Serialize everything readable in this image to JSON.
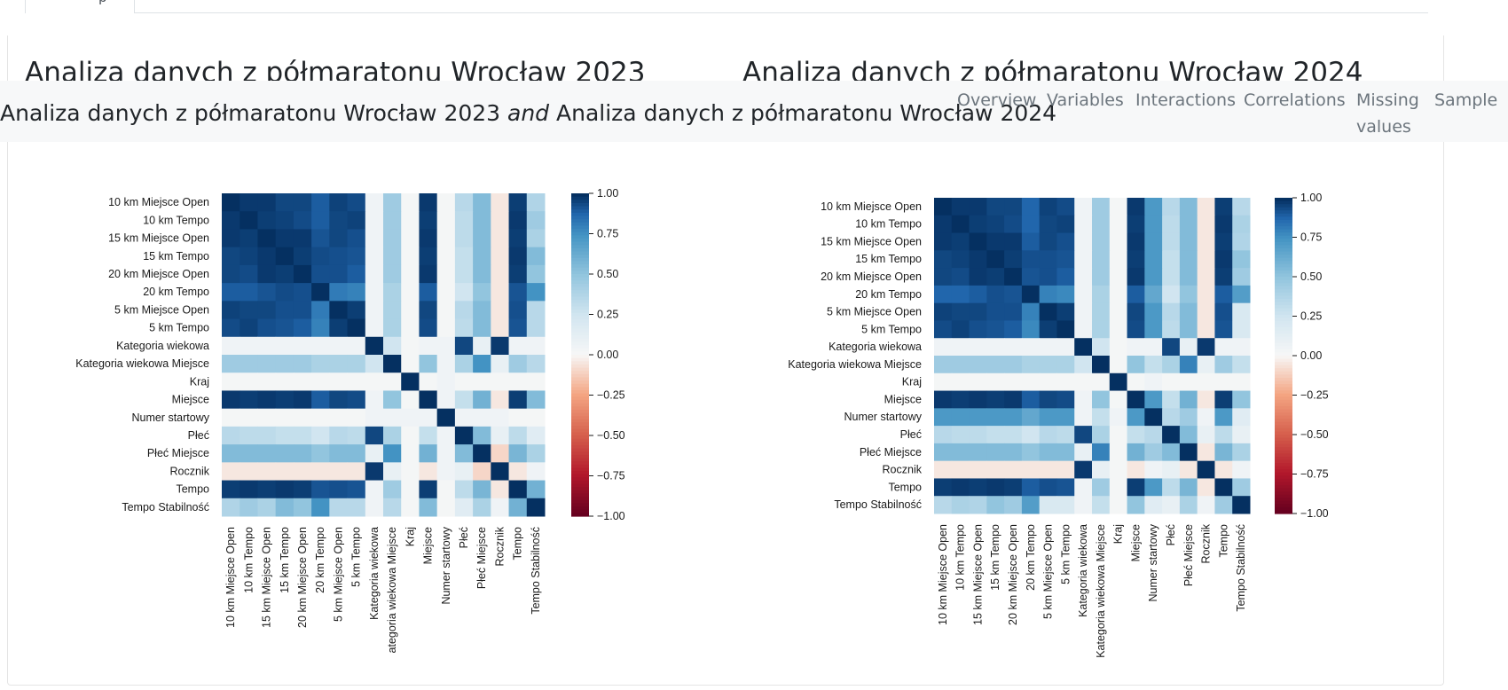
{
  "tab": {
    "label": "p"
  },
  "headings": {
    "left": "Analiza danych z półmaratonu Wrocław 2023",
    "right": "Analiza danych z półmaratonu Wrocław 2024"
  },
  "navbar": {
    "brand_left": "Analiza danych z półmaratonu Wrocław 2023",
    "brand_and": "and",
    "brand_right": "Analiza danych z półmaratonu Wrocław 2024",
    "links": [
      "Overview",
      "Variables",
      "Interactions",
      "Correlations",
      "Missing values",
      "Sample"
    ]
  },
  "chart_data": [
    {
      "type": "heatmap",
      "title": "",
      "variables": [
        "10 km Miejsce Open",
        "10 km Tempo",
        "15 km Miejsce Open",
        "15 km Tempo",
        "20 km Miejsce Open",
        "20 km Tempo",
        "5 km Miejsce Open",
        "5 km Tempo",
        "Kategoria wiekowa",
        "Kategoria wiekowa Miejsce",
        "Kraj",
        "Miejsce",
        "Numer startowy",
        "Płeć",
        "Płeć Miejsce",
        "Rocznik",
        "Tempo",
        "Tempo Stabilność"
      ],
      "x_tick_labels": [
        "10 km Miejsce Open",
        "10 km Tempo",
        "15 km Miejsce Open",
        "15 km Tempo",
        "20 km Miejsce Open",
        "20 km Tempo",
        "5 km Miejsce Open",
        "5 km Tempo",
        "Kategoria wiekowa",
        "ategoria wiekowa Miejsce",
        "Kraj",
        "Miejsce",
        "Numer startowy",
        "Płeć",
        "Płeć Miejsce",
        "Rocznik",
        "Tempo",
        "Tempo Stabilność"
      ],
      "values": [
        [
          1,
          0.98,
          0.98,
          0.95,
          0.95,
          0.9,
          0.96,
          0.94,
          0.05,
          0.45,
          0.02,
          0.98,
          0.02,
          0.35,
          0.55,
          -0.05,
          0.97,
          0.38
        ],
        [
          0.98,
          1,
          0.97,
          0.96,
          0.94,
          0.9,
          0.95,
          0.96,
          0.05,
          0.45,
          0.02,
          0.97,
          0.02,
          0.33,
          0.55,
          -0.05,
          0.98,
          0.45
        ],
        [
          0.98,
          0.97,
          1,
          0.98,
          0.98,
          0.92,
          0.95,
          0.93,
          0.05,
          0.45,
          0.02,
          0.98,
          0.02,
          0.33,
          0.55,
          -0.05,
          0.97,
          0.4
        ],
        [
          0.95,
          0.96,
          0.98,
          1,
          0.97,
          0.94,
          0.93,
          0.92,
          0.05,
          0.45,
          0.02,
          0.97,
          0.02,
          0.3,
          0.55,
          -0.05,
          0.98,
          0.55
        ],
        [
          0.95,
          0.94,
          0.98,
          0.97,
          1,
          0.93,
          0.93,
          0.9,
          0.05,
          0.45,
          0.02,
          0.98,
          0.02,
          0.3,
          0.55,
          -0.05,
          0.97,
          0.5
        ],
        [
          0.9,
          0.9,
          0.92,
          0.94,
          0.93,
          1,
          0.82,
          0.8,
          0.05,
          0.4,
          0.02,
          0.9,
          0.02,
          0.25,
          0.5,
          -0.05,
          0.92,
          0.75
        ],
        [
          0.96,
          0.95,
          0.95,
          0.93,
          0.93,
          0.82,
          1,
          0.97,
          0.05,
          0.4,
          0.02,
          0.95,
          0.02,
          0.35,
          0.55,
          -0.05,
          0.93,
          0.35
        ],
        [
          0.94,
          0.96,
          0.93,
          0.92,
          0.9,
          0.8,
          0.97,
          1,
          0.05,
          0.4,
          0.02,
          0.94,
          0.02,
          0.33,
          0.55,
          -0.05,
          0.92,
          0.35
        ],
        [
          0.05,
          0.05,
          0.05,
          0.05,
          0.05,
          0.05,
          0.05,
          0.05,
          1,
          0.25,
          0.02,
          0.05,
          0.05,
          0.95,
          0.1,
          0.98,
          0.05,
          0.05
        ],
        [
          0.45,
          0.45,
          0.45,
          0.45,
          0.45,
          0.4,
          0.4,
          0.4,
          0.25,
          1,
          0.02,
          0.5,
          0.05,
          0.4,
          0.75,
          0.1,
          0.45,
          0.35
        ],
        [
          0.02,
          0.02,
          0.02,
          0.02,
          0.02,
          0.02,
          0.02,
          0.02,
          0.02,
          0.02,
          1,
          0.02,
          0.05,
          0.02,
          0.02,
          0.02,
          0.02,
          0.02
        ],
        [
          0.98,
          0.97,
          0.98,
          0.97,
          0.98,
          0.9,
          0.95,
          0.94,
          0.05,
          0.5,
          0.02,
          1,
          0.05,
          0.3,
          0.6,
          -0.05,
          0.97,
          0.55
        ],
        [
          0.02,
          0.02,
          0.02,
          0.02,
          0.02,
          0.02,
          0.02,
          0.02,
          0.05,
          0.05,
          0.05,
          0.05,
          1,
          0.05,
          0.05,
          0.05,
          0.02,
          0.02
        ],
        [
          0.35,
          0.33,
          0.33,
          0.3,
          0.3,
          0.25,
          0.35,
          0.33,
          0.95,
          0.4,
          0.02,
          0.3,
          0.05,
          1,
          0.55,
          0.1,
          0.33,
          0.15
        ],
        [
          0.55,
          0.55,
          0.55,
          0.55,
          0.55,
          0.5,
          0.55,
          0.55,
          0.1,
          0.75,
          0.02,
          0.6,
          0.05,
          0.55,
          1,
          -0.1,
          0.58,
          0.4
        ],
        [
          -0.05,
          -0.05,
          -0.05,
          -0.05,
          -0.05,
          -0.05,
          -0.05,
          -0.05,
          0.98,
          0.1,
          0.02,
          -0.05,
          0.05,
          0.1,
          -0.1,
          1,
          -0.05,
          0.05
        ],
        [
          0.97,
          0.98,
          0.97,
          0.98,
          0.97,
          0.92,
          0.93,
          0.92,
          0.05,
          0.45,
          0.02,
          0.97,
          0.02,
          0.33,
          0.58,
          -0.05,
          1,
          0.6
        ],
        [
          0.38,
          0.45,
          0.4,
          0.55,
          0.5,
          0.75,
          0.35,
          0.35,
          0.05,
          0.35,
          0.02,
          0.55,
          0.02,
          0.15,
          0.4,
          0.05,
          0.6,
          1
        ]
      ],
      "colorbar": {
        "min": -1,
        "max": 1,
        "ticks": [
          "1.00",
          "0.75",
          "0.50",
          "0.25",
          "0.00",
          "−0.25",
          "−0.50",
          "−0.75",
          "−1.00"
        ]
      },
      "colormap": "RdBu"
    },
    {
      "type": "heatmap",
      "title": "",
      "variables": [
        "10 km Miejsce Open",
        "10 km Tempo",
        "15 km Miejsce Open",
        "15 km Tempo",
        "20 km Miejsce Open",
        "20 km Tempo",
        "5 km Miejsce Open",
        "5 km Tempo",
        "Kategoria wiekowa",
        "Kategoria wiekowa Miejsce",
        "Kraj",
        "Miejsce",
        "Numer startowy",
        "Płeć",
        "Płeć Miejsce",
        "Rocznik",
        "Tempo",
        "Tempo Stabilność"
      ],
      "x_tick_labels": [
        "10 km Miejsce Open",
        "10 km Tempo",
        "15 km Miejsce Open",
        "15 km Tempo",
        "20 km Miejsce Open",
        "20 km Tempo",
        "5 km Miejsce Open",
        "5 km Tempo",
        "Kategoria wiekowa",
        "Kategoria wiekowa Miejsce",
        "Kraj",
        "Miejsce",
        "Numer startowy",
        "Płeć",
        "Płeć Miejsce",
        "Rocznik",
        "Tempo",
        "Tempo Stabilność"
      ],
      "values": [
        [
          1,
          0.98,
          0.98,
          0.95,
          0.95,
          0.88,
          0.96,
          0.94,
          0.05,
          0.45,
          0.02,
          0.98,
          0.72,
          0.35,
          0.55,
          -0.05,
          0.97,
          0.35
        ],
        [
          0.98,
          1,
          0.97,
          0.96,
          0.94,
          0.88,
          0.95,
          0.96,
          0.05,
          0.45,
          0.02,
          0.97,
          0.72,
          0.33,
          0.55,
          -0.05,
          0.98,
          0.4
        ],
        [
          0.98,
          0.97,
          1,
          0.98,
          0.98,
          0.9,
          0.95,
          0.93,
          0.05,
          0.45,
          0.02,
          0.98,
          0.72,
          0.33,
          0.55,
          -0.05,
          0.97,
          0.38
        ],
        [
          0.95,
          0.96,
          0.98,
          1,
          0.97,
          0.93,
          0.93,
          0.92,
          0.05,
          0.45,
          0.02,
          0.97,
          0.72,
          0.3,
          0.55,
          -0.05,
          0.98,
          0.5
        ],
        [
          0.95,
          0.94,
          0.98,
          0.97,
          1,
          0.92,
          0.93,
          0.9,
          0.05,
          0.45,
          0.02,
          0.98,
          0.72,
          0.3,
          0.55,
          -0.05,
          0.97,
          0.45
        ],
        [
          0.88,
          0.88,
          0.9,
          0.93,
          0.92,
          1,
          0.8,
          0.78,
          0.05,
          0.4,
          0.02,
          0.9,
          0.65,
          0.25,
          0.5,
          -0.05,
          0.9,
          0.7
        ],
        [
          0.96,
          0.95,
          0.95,
          0.93,
          0.93,
          0.8,
          1,
          0.97,
          0.05,
          0.4,
          0.02,
          0.95,
          0.72,
          0.35,
          0.55,
          -0.05,
          0.93,
          0.2
        ],
        [
          0.94,
          0.96,
          0.93,
          0.92,
          0.9,
          0.78,
          0.97,
          1,
          0.05,
          0.4,
          0.02,
          0.94,
          0.72,
          0.33,
          0.55,
          -0.05,
          0.92,
          0.2
        ],
        [
          0.05,
          0.05,
          0.05,
          0.05,
          0.05,
          0.05,
          0.05,
          0.05,
          1,
          0.25,
          0.02,
          0.05,
          0.05,
          0.95,
          0.1,
          0.98,
          0.05,
          0.05
        ],
        [
          0.45,
          0.45,
          0.45,
          0.45,
          0.45,
          0.4,
          0.4,
          0.4,
          0.25,
          1,
          0.02,
          0.5,
          0.3,
          0.4,
          0.8,
          0.1,
          0.45,
          0.3
        ],
        [
          0.02,
          0.02,
          0.02,
          0.02,
          0.02,
          0.02,
          0.02,
          0.02,
          0.02,
          0.02,
          1,
          0.02,
          0.05,
          0.02,
          0.02,
          0.02,
          0.02,
          0.02
        ],
        [
          0.98,
          0.97,
          0.98,
          0.97,
          0.98,
          0.9,
          0.95,
          0.94,
          0.05,
          0.5,
          0.02,
          1,
          0.72,
          0.3,
          0.6,
          -0.05,
          0.97,
          0.5
        ],
        [
          0.72,
          0.72,
          0.72,
          0.72,
          0.72,
          0.65,
          0.72,
          0.72,
          0.05,
          0.3,
          0.05,
          0.72,
          1,
          0.35,
          0.45,
          0.05,
          0.72,
          0.15
        ],
        [
          0.35,
          0.33,
          0.33,
          0.3,
          0.3,
          0.25,
          0.35,
          0.33,
          0.95,
          0.4,
          0.02,
          0.3,
          0.35,
          1,
          0.55,
          0.1,
          0.33,
          0.1
        ],
        [
          0.55,
          0.55,
          0.55,
          0.55,
          0.55,
          0.5,
          0.55,
          0.55,
          0.1,
          0.8,
          0.02,
          0.6,
          0.45,
          0.55,
          1,
          -0.05,
          0.58,
          0.4
        ],
        [
          -0.05,
          -0.05,
          -0.05,
          -0.05,
          -0.05,
          -0.05,
          -0.05,
          -0.05,
          0.98,
          0.1,
          0.02,
          -0.05,
          0.05,
          0.1,
          -0.05,
          1,
          -0.05,
          0.05
        ],
        [
          0.97,
          0.98,
          0.97,
          0.98,
          0.97,
          0.9,
          0.93,
          0.92,
          0.05,
          0.45,
          0.02,
          0.97,
          0.72,
          0.33,
          0.58,
          -0.05,
          1,
          0.45
        ],
        [
          0.35,
          0.4,
          0.38,
          0.5,
          0.45,
          0.7,
          0.2,
          0.2,
          0.05,
          0.3,
          0.02,
          0.5,
          0.15,
          0.1,
          0.4,
          0.05,
          0.45,
          1
        ]
      ],
      "colorbar": {
        "min": -1,
        "max": 1,
        "ticks": [
          "1.00",
          "0.75",
          "0.50",
          "0.25",
          "0.00",
          "−0.25",
          "−0.50",
          "−0.75",
          "−1.00"
        ]
      },
      "colormap": "RdBu"
    }
  ]
}
